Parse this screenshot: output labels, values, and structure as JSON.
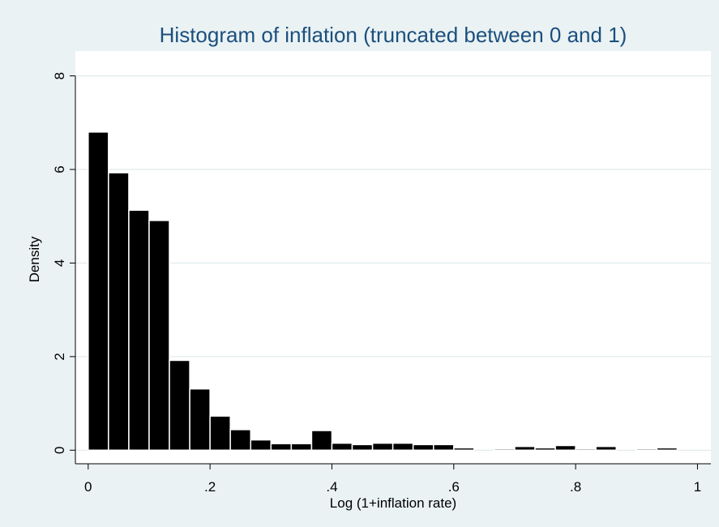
{
  "chart_data": {
    "type": "histogram",
    "title": "Histogram of inflation (truncated between 0 and 1)",
    "x_label": "Log (1+inflation rate)",
    "y_label": "Density",
    "bins": [
      0,
      0.0333,
      0.0667,
      0.1,
      0.1333,
      0.1667,
      0.2,
      0.2333,
      0.2667,
      0.3,
      0.3333,
      0.3667,
      0.4,
      0.4333,
      0.4667,
      0.5,
      0.5333,
      0.5667,
      0.6,
      0.6333,
      0.6667,
      0.7,
      0.7333,
      0.7667,
      0.8,
      0.8333,
      0.8667,
      0.9,
      0.9333,
      0.9667
    ],
    "values": [
      6.8,
      5.93,
      5.13,
      4.91,
      1.92,
      1.31,
      0.73,
      0.44,
      0.22,
      0.14,
      0.14,
      0.42,
      0.15,
      0.12,
      0.15,
      0.15,
      0.12,
      0.12,
      0.05,
      0,
      0.03,
      0.08,
      0.05,
      0.1,
      0.03,
      0.08,
      0,
      0.03,
      0.05
    ],
    "color": "#000000",
    "xlim": [
      -0.021,
      1.022
    ],
    "xticks": [
      0,
      {
        "value": 0.2,
        "label": ".2"
      },
      {
        "value": 0.4,
        "label": ".4"
      },
      {
        "value": 0.6,
        "label": ".6"
      },
      {
        "value": 0.8,
        "label": ".8"
      },
      1
    ],
    "ylim": [
      -0.29,
      8.53
    ],
    "yticks": [
      0,
      2,
      4,
      6,
      8
    ],
    "grid": true
  }
}
